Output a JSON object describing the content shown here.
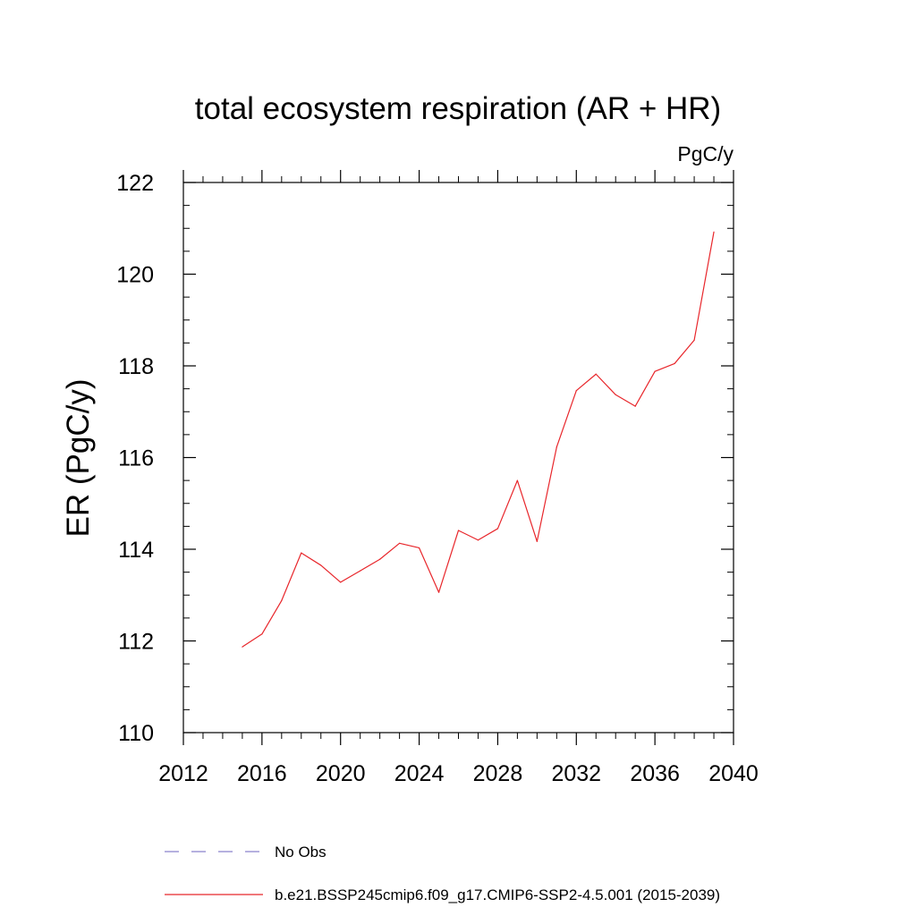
{
  "chart_data": {
    "type": "line",
    "title": "total ecosystem respiration (AR + HR)",
    "units": "PgC/y",
    "xlabel": "",
    "ylabel": "ER  (PgC/y)",
    "xlim": [
      2012,
      2040
    ],
    "ylim": [
      110,
      122
    ],
    "xticks": [
      2012,
      2016,
      2020,
      2024,
      2028,
      2032,
      2036,
      2040
    ],
    "yticks": [
      110,
      112,
      114,
      116,
      118,
      120,
      122
    ],
    "x_minor_step": 1,
    "y_minor_step": 0.5,
    "grid": false,
    "legend_position": "bottom",
    "legend": [
      {
        "name": "No Obs",
        "color": "#8a82cc",
        "style": "dashed"
      },
      {
        "name": "b.e21.BSSP245cmip6.f09_g17.CMIP6-SSP2-4.5.001 (2015-2039)",
        "color": "#e8262b",
        "style": "solid"
      }
    ],
    "series": [
      {
        "name": "b.e21.BSSP245cmip6.f09_g17.CMIP6-SSP2-4.5.001 (2015-2039)",
        "color": "#e8262b",
        "x": [
          2015,
          2016,
          2017,
          2018,
          2019,
          2020,
          2021,
          2022,
          2023,
          2024,
          2025,
          2026,
          2027,
          2028,
          2029,
          2030,
          2031,
          2032,
          2033,
          2034,
          2035,
          2036,
          2037,
          2038,
          2039
        ],
        "y": [
          111.87,
          112.15,
          112.88,
          113.92,
          113.65,
          113.28,
          113.53,
          113.78,
          114.13,
          114.03,
          113.06,
          114.41,
          114.2,
          114.45,
          115.5,
          114.17,
          116.23,
          117.46,
          117.82,
          117.37,
          117.12,
          117.88,
          118.05,
          118.56,
          120.92
        ]
      }
    ]
  }
}
